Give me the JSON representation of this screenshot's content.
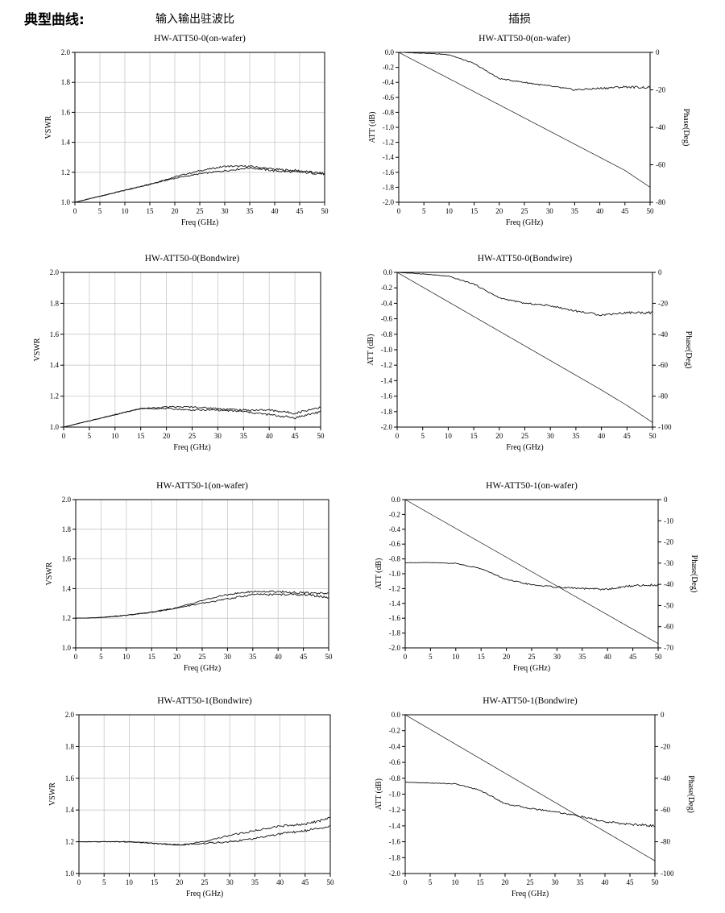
{
  "header": {
    "section_title": "典型曲线:",
    "col1_title": "输入输出驻波比",
    "col2_title": "插损"
  },
  "chart_data": [
    {
      "type": "line",
      "title": "HW-ATT50-0(on-wafer)",
      "xlabel": "Freq (GHz)",
      "ylabel": "VSWR",
      "xlim": [
        0,
        50
      ],
      "ylim": [
        1.0,
        2.0
      ],
      "xticks": [
        "0",
        "5",
        "10",
        "15",
        "20",
        "25",
        "30",
        "35",
        "40",
        "45",
        "50"
      ],
      "yticks": [
        "1.0",
        "1.2",
        "1.4",
        "1.6",
        "1.8",
        "2.0"
      ],
      "grid": true,
      "x": [
        0,
        5,
        10,
        15,
        20,
        25,
        30,
        35,
        40,
        45,
        50
      ],
      "series": [
        {
          "values": [
            1.0,
            1.04,
            1.08,
            1.12,
            1.17,
            1.21,
            1.24,
            1.24,
            1.22,
            1.21,
            1.19
          ]
        },
        {
          "values": [
            1.0,
            1.04,
            1.08,
            1.12,
            1.16,
            1.19,
            1.21,
            1.23,
            1.21,
            1.2,
            1.19
          ]
        }
      ]
    },
    {
      "type": "line",
      "title": "HW-ATT50-0(on-wafer)",
      "xlabel": "Freq (GHz)",
      "ylabel": "ATT (dB)",
      "y2label": "Phase(Deg)",
      "xlim": [
        0,
        50
      ],
      "ylim": [
        -2.0,
        0.0
      ],
      "y2lim": [
        -80,
        0
      ],
      "xticks": [
        "0",
        "5",
        "10",
        "15",
        "20",
        "25",
        "30",
        "35",
        "40",
        "45",
        "50"
      ],
      "yticks": [
        "0.0",
        "-0.2",
        "-0.4",
        "-0.6",
        "-0.8",
        "-1.0",
        "-1.2",
        "-1.4",
        "-1.6",
        "-1.8",
        "-2.0"
      ],
      "y2ticks": [
        "0",
        "-20",
        "-40",
        "-60",
        "-80"
      ],
      "grid": false,
      "x": [
        0,
        5,
        10,
        15,
        20,
        25,
        30,
        35,
        40,
        45,
        50
      ],
      "series": [
        {
          "axis": "left",
          "values": [
            0.0,
            -0.01,
            -0.03,
            -0.15,
            -0.35,
            -0.4,
            -0.45,
            -0.5,
            -0.48,
            -0.46,
            -0.47
          ]
        },
        {
          "axis": "right",
          "values": [
            0,
            -7,
            -14,
            -21,
            -28,
            -35,
            -42,
            -49,
            -56,
            -63,
            -72
          ]
        }
      ]
    },
    {
      "type": "line",
      "title": "HW-ATT50-0(Bondwire)",
      "xlabel": "Freq (GHz)",
      "ylabel": "VSWR",
      "xlim": [
        0,
        50
      ],
      "ylim": [
        1.0,
        2.0
      ],
      "xticks": [
        "0",
        "5",
        "10",
        "15",
        "20",
        "25",
        "30",
        "35",
        "40",
        "45",
        "50"
      ],
      "yticks": [
        "1.0",
        "1.2",
        "1.4",
        "1.6",
        "1.8",
        "2.0"
      ],
      "grid": true,
      "x": [
        0,
        5,
        10,
        15,
        20,
        25,
        30,
        35,
        40,
        45,
        50
      ],
      "series": [
        {
          "values": [
            1.0,
            1.04,
            1.08,
            1.12,
            1.13,
            1.13,
            1.12,
            1.11,
            1.11,
            1.09,
            1.13
          ]
        },
        {
          "values": [
            1.0,
            1.04,
            1.08,
            1.12,
            1.12,
            1.11,
            1.11,
            1.1,
            1.08,
            1.06,
            1.1
          ]
        }
      ]
    },
    {
      "type": "line",
      "title": "HW-ATT50-0(Bondwire)",
      "xlabel": "Freq (GHz)",
      "ylabel": "ATT (dB)",
      "y2label": "Phase(Deg)",
      "xlim": [
        0,
        50
      ],
      "ylim": [
        -2.0,
        0.0
      ],
      "y2lim": [
        -100,
        0
      ],
      "xticks": [
        "0",
        "5",
        "10",
        "15",
        "20",
        "25",
        "30",
        "35",
        "40",
        "45",
        "50"
      ],
      "yticks": [
        "0.0",
        "-0.2",
        "-0.4",
        "-0.6",
        "-0.8",
        "-1.0",
        "-1.2",
        "-1.4",
        "-1.6",
        "-1.8",
        "-2.0"
      ],
      "y2ticks": [
        "0",
        "-20",
        "-40",
        "-60",
        "-80",
        "-100"
      ],
      "grid": false,
      "x": [
        0,
        5,
        10,
        15,
        20,
        25,
        30,
        35,
        40,
        45,
        50
      ],
      "series": [
        {
          "axis": "left",
          "values": [
            0.0,
            -0.02,
            -0.05,
            -0.15,
            -0.33,
            -0.4,
            -0.43,
            -0.5,
            -0.55,
            -0.52,
            -0.52
          ]
        },
        {
          "axis": "right",
          "values": [
            0,
            -9.5,
            -19,
            -28.5,
            -38,
            -47.5,
            -57,
            -66.5,
            -76,
            -86,
            -97
          ]
        }
      ]
    },
    {
      "type": "line",
      "title": "HW-ATT50-1(on-wafer)",
      "xlabel": "Freq (GHz)",
      "ylabel": "VSWR",
      "xlim": [
        0,
        50
      ],
      "ylim": [
        1.0,
        2.0
      ],
      "xticks": [
        "0",
        "5",
        "10",
        "15",
        "20",
        "25",
        "30",
        "35",
        "40",
        "45",
        "50"
      ],
      "yticks": [
        "1.0",
        "1.2",
        "1.4",
        "1.6",
        "1.8",
        "2.0"
      ],
      "grid": true,
      "x": [
        0,
        5,
        10,
        15,
        20,
        25,
        30,
        35,
        40,
        45,
        50
      ],
      "series": [
        {
          "values": [
            1.2,
            1.205,
            1.22,
            1.24,
            1.27,
            1.32,
            1.36,
            1.38,
            1.38,
            1.37,
            1.37
          ]
        },
        {
          "values": [
            1.2,
            1.205,
            1.22,
            1.24,
            1.27,
            1.3,
            1.33,
            1.36,
            1.36,
            1.36,
            1.34
          ]
        }
      ]
    },
    {
      "type": "line",
      "title": "HW-ATT50-1(on-wafer)",
      "xlabel": "Freq (GHz)",
      "ylabel": "ATT (dB)",
      "y2label": "Phase(Deg)",
      "xlim": [
        0,
        50
      ],
      "ylim": [
        -2.0,
        0.0
      ],
      "y2lim": [
        -70,
        0
      ],
      "xticks": [
        "0",
        "5",
        "10",
        "15",
        "20",
        "25",
        "30",
        "35",
        "40",
        "45",
        "50"
      ],
      "yticks": [
        "0.0",
        "-0.2",
        "-0.4",
        "-0.6",
        "-0.8",
        "-1.0",
        "-1.2",
        "-1.4",
        "-1.6",
        "-1.8",
        "-2.0"
      ],
      "y2ticks": [
        "0",
        "-10",
        "-20",
        "-30",
        "-40",
        "-50",
        "-60",
        "-70"
      ],
      "grid": false,
      "x": [
        0,
        5,
        10,
        15,
        20,
        25,
        30,
        35,
        40,
        45,
        50
      ],
      "series": [
        {
          "axis": "left",
          "values": [
            -0.85,
            -0.85,
            -0.86,
            -0.93,
            -1.08,
            -1.15,
            -1.18,
            -1.2,
            -1.21,
            -1.16,
            -1.15
          ]
        },
        {
          "axis": "right",
          "values": [
            0,
            -6.8,
            -13.6,
            -20.4,
            -27.2,
            -34,
            -40.8,
            -47.6,
            -54.4,
            -61.2,
            -68
          ]
        }
      ]
    },
    {
      "type": "line",
      "title": "HW-ATT50-1(Bondwire)",
      "xlabel": "Freq (GHz)",
      "ylabel": "VSWR",
      "xlim": [
        0,
        50
      ],
      "ylim": [
        1.0,
        2.0
      ],
      "xticks": [
        "0",
        "5",
        "10",
        "15",
        "20",
        "25",
        "30",
        "35",
        "40",
        "45",
        "50"
      ],
      "yticks": [
        "1.0",
        "1.2",
        "1.4",
        "1.6",
        "1.8",
        "2.0"
      ],
      "grid": true,
      "x": [
        0,
        5,
        10,
        15,
        20,
        25,
        30,
        35,
        40,
        45,
        50
      ],
      "series": [
        {
          "values": [
            1.2,
            1.2,
            1.2,
            1.19,
            1.18,
            1.2,
            1.24,
            1.27,
            1.3,
            1.31,
            1.35
          ]
        },
        {
          "values": [
            1.2,
            1.2,
            1.2,
            1.19,
            1.18,
            1.19,
            1.2,
            1.22,
            1.25,
            1.27,
            1.3
          ]
        }
      ]
    },
    {
      "type": "line",
      "title": "HW-ATT50-1(Bondwire)",
      "xlabel": "Freq (GHz)",
      "ylabel": "ATT (dB)",
      "y2label": "Phase(Deg)",
      "xlim": [
        0,
        50
      ],
      "ylim": [
        -2.0,
        0.0
      ],
      "y2lim": [
        -100,
        0
      ],
      "xticks": [
        "0",
        "5",
        "10",
        "15",
        "20",
        "25",
        "30",
        "35",
        "40",
        "45",
        "50"
      ],
      "yticks": [
        "0.0",
        "-0.2",
        "-0.4",
        "-0.6",
        "-0.8",
        "-1.0",
        "-1.2",
        "-1.4",
        "-1.6",
        "-1.8",
        "-2.0"
      ],
      "y2ticks": [
        "0",
        "-20",
        "-40",
        "-60",
        "-80",
        "-100"
      ],
      "grid": false,
      "x": [
        0,
        5,
        10,
        15,
        20,
        25,
        30,
        35,
        40,
        45,
        50
      ],
      "series": [
        {
          "axis": "left",
          "values": [
            -0.85,
            -0.86,
            -0.87,
            -0.95,
            -1.12,
            -1.18,
            -1.22,
            -1.28,
            -1.35,
            -1.38,
            -1.4
          ]
        },
        {
          "axis": "right",
          "values": [
            0,
            -9.2,
            -18.4,
            -27.6,
            -36.8,
            -46,
            -55.2,
            -64.4,
            -73.6,
            -82.8,
            -92
          ]
        }
      ]
    }
  ]
}
